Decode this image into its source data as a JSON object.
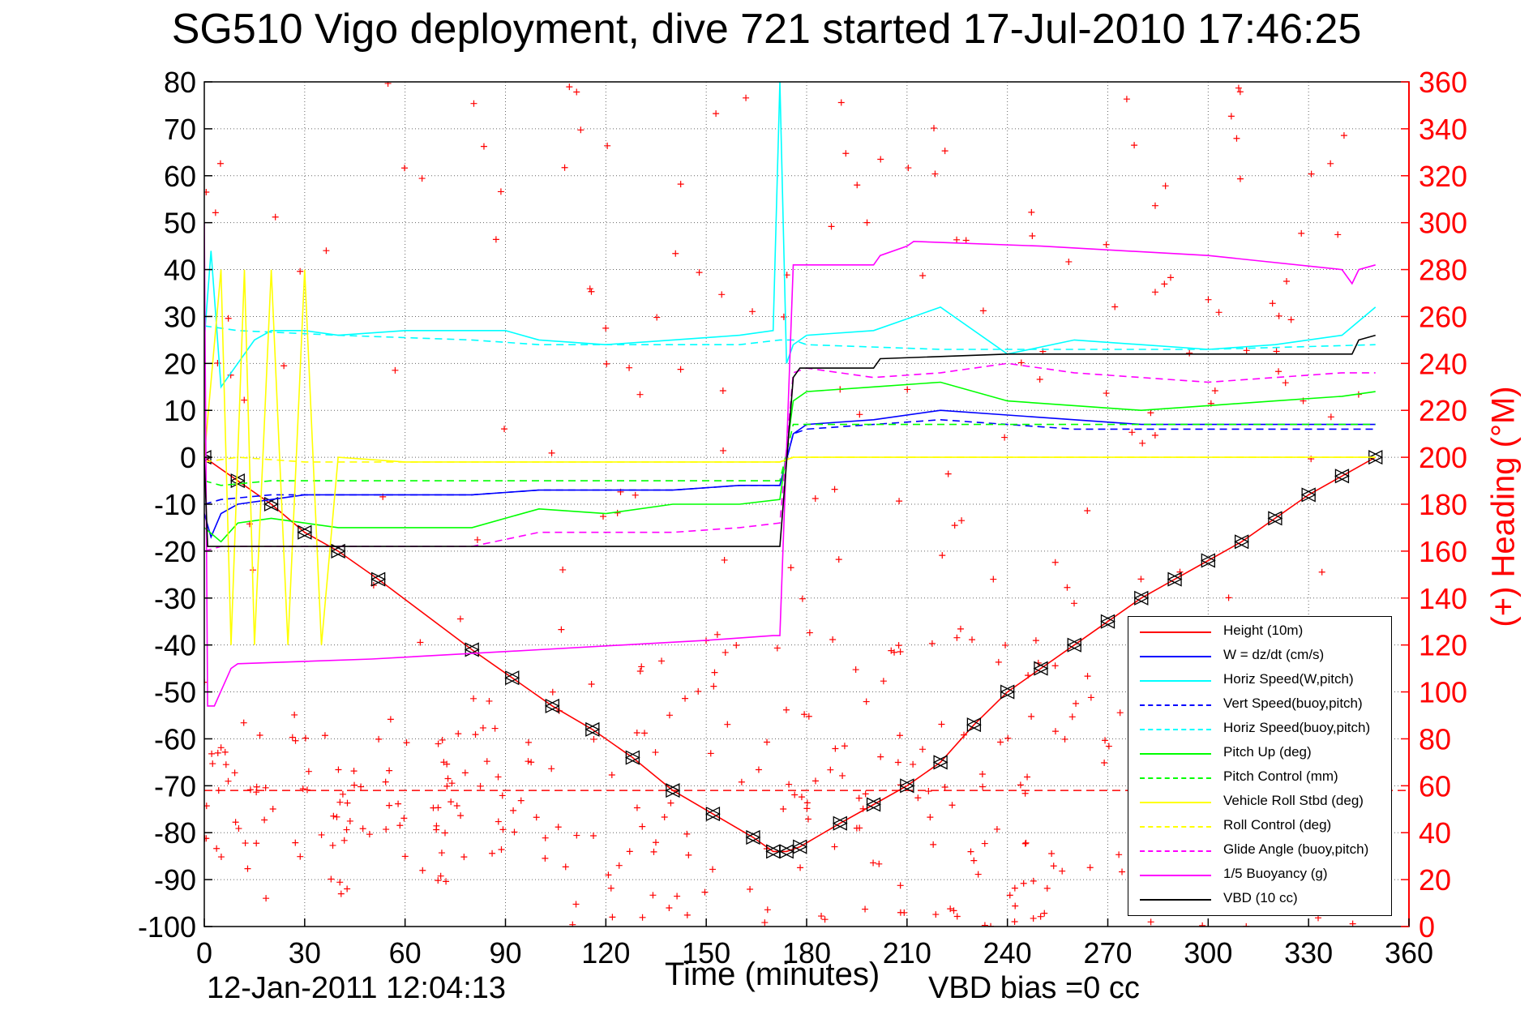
{
  "header": {
    "title": "SG510 Vigo deployment, dive 721 started 17-Jul-2010 17:46:25",
    "xlabel": "Time (minutes)",
    "ylabel_right": "(+) Heading (°M)",
    "vbd_bias": "VBD bias =0 cc",
    "timestamp": "12-Jan-2011 12:04:13"
  },
  "chart_data": {
    "type": "line",
    "title": "SG510 Vigo deployment, dive 721 started 17-Jul-2010 17:46:25",
    "xlabel": "Time (minutes)",
    "ylabel": "",
    "ylabel_right": "(+) Heading (°M)",
    "xlim": [
      0,
      360
    ],
    "ylim": [
      -100,
      80
    ],
    "ylim_right": [
      0,
      360
    ],
    "x_ticks": [
      "0",
      "30",
      "60",
      "90",
      "120",
      "150",
      "180",
      "210",
      "240",
      "270",
      "300",
      "330",
      "360"
    ],
    "y_ticks": [
      "80",
      "70",
      "60",
      "50",
      "40",
      "30",
      "20",
      "10",
      "0",
      "-10",
      "-20",
      "-30",
      "-40",
      "-50",
      "-60",
      "-70",
      "-80",
      "-90",
      "-100"
    ],
    "y_ticks_right": [
      "360",
      "340",
      "320",
      "300",
      "280",
      "260",
      "240",
      "220",
      "200",
      "180",
      "160",
      "140",
      "120",
      "100",
      "80",
      "60",
      "40",
      "20",
      "0"
    ],
    "grid": true,
    "legend_position": "bottom-right",
    "colors": {
      "height": "#ff0000",
      "w": "#0000ff",
      "horiz_w": "#00ffff",
      "pitch": "#00ff00",
      "roll": "#ffff00",
      "glide": "#ff00ff",
      "buoyancy": "#ff00ff",
      "vbd": "#000000",
      "heading": "#ff0000"
    },
    "series": [
      {
        "name": "Height (10m)",
        "color": "#ff0000",
        "dash": "solid",
        "markers": "triangles",
        "x": [
          0,
          10,
          20,
          30,
          40,
          52,
          80,
          92,
          104,
          116,
          128,
          140,
          152,
          164,
          170,
          174,
          178,
          190,
          200,
          210,
          220,
          230,
          240,
          250,
          260,
          270,
          280,
          290,
          300,
          310,
          320,
          330,
          340,
          350
        ],
        "y": [
          0,
          -5,
          -10,
          -16,
          -20,
          -26,
          -41,
          -47,
          -53,
          -58,
          -64,
          -71,
          -76,
          -81,
          -84,
          -84,
          -83,
          -78,
          -74,
          -70,
          -65,
          -57,
          -50,
          -45,
          -40,
          -35,
          -30,
          -26,
          -22,
          -18,
          -13,
          -8,
          -4,
          0
        ]
      },
      {
        "name": "W = dz/dt (cm/s)",
        "color": "#0000ff",
        "dash": "solid",
        "x": [
          0,
          2,
          5,
          10,
          20,
          30,
          40,
          60,
          80,
          100,
          120,
          140,
          160,
          172,
          176,
          180,
          200,
          220,
          240,
          260,
          280,
          300,
          320,
          340,
          350
        ],
        "y": [
          -12,
          -17,
          -12,
          -10,
          -9,
          -8,
          -8,
          -8,
          -8,
          -7,
          -7,
          -7,
          -6,
          -6,
          5,
          7,
          8,
          10,
          9,
          8,
          7,
          7,
          7,
          7,
          7
        ]
      },
      {
        "name": "Horiz Speed(W,pitch)",
        "color": "#00ffff",
        "dash": "solid",
        "x": [
          0,
          2,
          5,
          10,
          15,
          20,
          30,
          40,
          60,
          80,
          90,
          100,
          120,
          140,
          160,
          170,
          172,
          174,
          176,
          180,
          200,
          220,
          240,
          260,
          280,
          300,
          320,
          340,
          350
        ],
        "y": [
          25,
          44,
          15,
          20,
          25,
          27,
          27,
          26,
          27,
          27,
          27,
          25,
          24,
          25,
          26,
          27,
          80,
          20,
          24,
          26,
          27,
          32,
          22,
          25,
          24,
          23,
          24,
          26,
          32
        ]
      },
      {
        "name": "Vert Speed(buoy,pitch)",
        "color": "#0000ff",
        "dash": "dashed",
        "x": [
          0,
          5,
          20,
          40,
          60,
          80,
          100,
          120,
          140,
          160,
          172,
          176,
          180,
          200,
          220,
          240,
          260,
          280,
          300,
          320,
          350
        ],
        "y": [
          -10,
          -9,
          -8,
          -8,
          -8,
          -8,
          -7,
          -7,
          -7,
          -6,
          -6,
          5,
          6,
          7,
          8,
          7,
          6,
          6,
          6,
          6,
          6
        ]
      },
      {
        "name": "Horiz Speed(buoy,pitch)",
        "color": "#00ffff",
        "dash": "dashed",
        "x": [
          0,
          10,
          40,
          80,
          100,
          120,
          140,
          160,
          172,
          176,
          180,
          220,
          260,
          300,
          350
        ],
        "y": [
          28,
          27,
          26,
          25,
          24,
          24,
          24,
          24,
          25,
          25,
          24,
          23,
          23,
          23,
          24
        ]
      },
      {
        "name": "Pitch Up (deg)",
        "color": "#00ff00",
        "dash": "solid",
        "x": [
          0,
          5,
          10,
          20,
          30,
          40,
          60,
          80,
          100,
          120,
          140,
          160,
          172,
          176,
          180,
          200,
          220,
          240,
          260,
          280,
          300,
          320,
          340,
          350
        ],
        "y": [
          -15,
          -18,
          -14,
          -13,
          -14,
          -15,
          -15,
          -15,
          -11,
          -12,
          -10,
          -10,
          -9,
          12,
          14,
          15,
          16,
          12,
          11,
          10,
          11,
          12,
          13,
          14
        ]
      },
      {
        "name": "Pitch Control (mm)",
        "color": "#00ff00",
        "dash": "dashed",
        "x": [
          0,
          5,
          20,
          40,
          80,
          120,
          160,
          172,
          176,
          180,
          220,
          260,
          300,
          350
        ],
        "y": [
          -5,
          -6,
          -5,
          -5,
          -5,
          -5,
          -5,
          -5,
          7,
          7,
          7,
          7,
          7,
          7
        ]
      },
      {
        "name": "Vehicle Roll Stbd (deg)",
        "color": "#ffff00",
        "dash": "solid",
        "x": [
          0,
          5,
          8,
          12,
          15,
          20,
          25,
          30,
          35,
          40,
          60,
          80,
          100,
          120,
          140,
          160,
          172,
          176,
          180,
          200,
          220,
          240,
          260,
          280,
          300,
          320,
          340,
          350
        ],
        "y": [
          0,
          40,
          -40,
          40,
          -40,
          40,
          -40,
          40,
          -40,
          0,
          -1,
          -1,
          -1,
          -1,
          -1,
          -1,
          -1,
          0,
          0,
          0,
          0,
          0,
          0,
          0,
          0,
          0,
          0,
          0
        ]
      },
      {
        "name": "Roll Control (deg)",
        "color": "#ffff00",
        "dash": "dashed",
        "x": [
          0,
          10,
          30,
          60,
          90,
          120,
          150,
          172,
          176,
          200,
          230,
          260,
          290,
          320,
          350
        ],
        "y": [
          -1,
          0,
          -1,
          -1,
          -1,
          -1,
          -1,
          -1,
          0,
          0,
          0,
          0,
          0,
          0,
          0
        ]
      },
      {
        "name": "Glide Angle (buoy,pitch)",
        "color": "#ff00ff",
        "dash": "dashed",
        "x": [
          0,
          5,
          20,
          40,
          60,
          80,
          100,
          120,
          140,
          160,
          172,
          176,
          180,
          200,
          220,
          240,
          260,
          280,
          300,
          320,
          340,
          350
        ],
        "y": [
          -20,
          -19,
          -19,
          -19,
          -19,
          -19,
          -16,
          -16,
          -16,
          -15,
          -14,
          18,
          19,
          17,
          18,
          20,
          18,
          17,
          16,
          17,
          18,
          18
        ]
      },
      {
        "name": "1/5 Buoyancy (g)",
        "color": "#ff00ff",
        "dash": "solid",
        "x": [
          0,
          1,
          3,
          8,
          10,
          50,
          100,
          150,
          170,
          172,
          176,
          180,
          200,
          202,
          210,
          212,
          250,
          300,
          340,
          343,
          345,
          350
        ],
        "y": [
          50,
          -53,
          -53,
          -45,
          -44,
          -43,
          -41,
          -39,
          -38,
          -38,
          41,
          41,
          41,
          43,
          45,
          46,
          45,
          43,
          40,
          37,
          40,
          41
        ]
      },
      {
        "name": "VBD (10 cc)",
        "color": "#000000",
        "dash": "solid",
        "x": [
          0,
          1,
          3,
          100,
          170,
          172,
          176,
          178,
          200,
          202,
          240,
          300,
          343,
          345,
          350
        ],
        "y": [
          0,
          -19,
          -19,
          -19,
          -19,
          -19,
          17,
          19,
          19,
          21,
          22,
          22,
          22,
          25,
          26
        ]
      }
    ],
    "heading_reference_deg": 58
  }
}
